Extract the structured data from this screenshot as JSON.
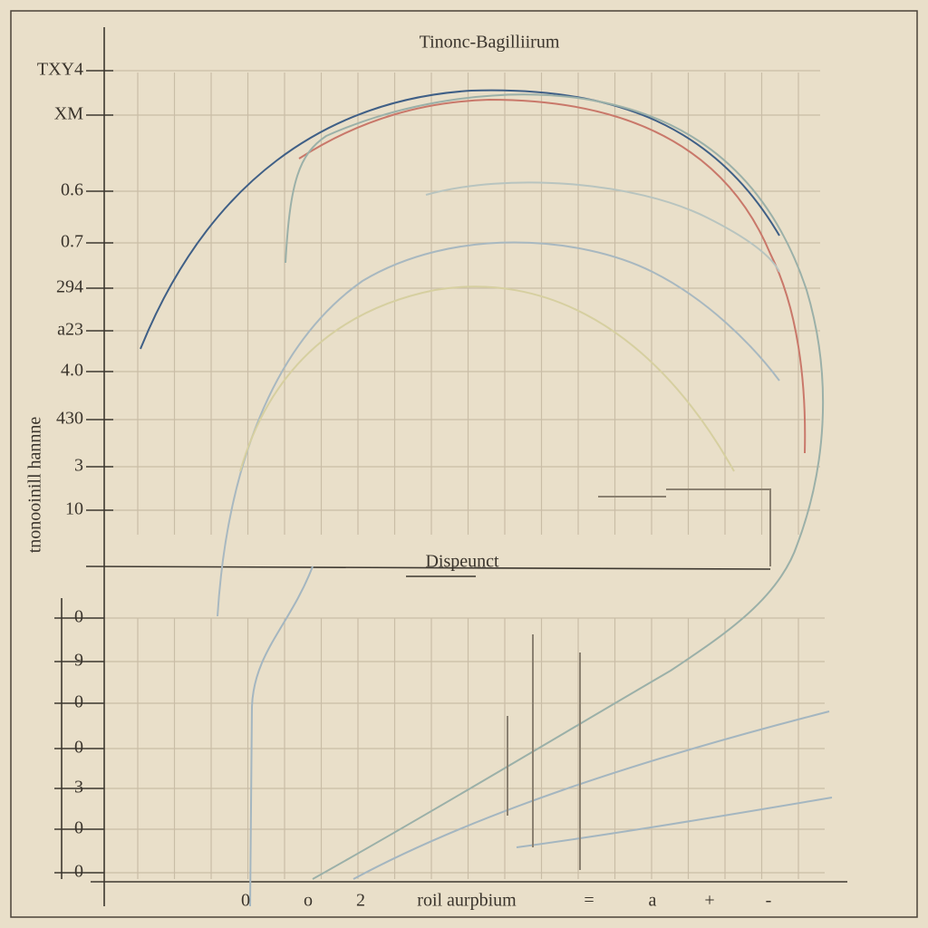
{
  "header": {
    "title": "Tinonc-Bagilliirum"
  },
  "y_axis": {
    "label": "tnonooinill hannne",
    "upper_ticks": [
      "TXY4",
      "XM",
      "0.6",
      "0.7",
      "294",
      "a23",
      "4.0",
      "430",
      "3",
      "10"
    ],
    "lower_ticks": [
      "0",
      "9",
      "0",
      "0",
      "3",
      "0",
      "0"
    ]
  },
  "x_axis": {
    "label": "roil aurpbium",
    "ticks": [
      "0",
      "o",
      "2",
      "=",
      "a",
      "+",
      "-"
    ]
  },
  "annotations": {
    "middle": "Dispeunct"
  }
}
